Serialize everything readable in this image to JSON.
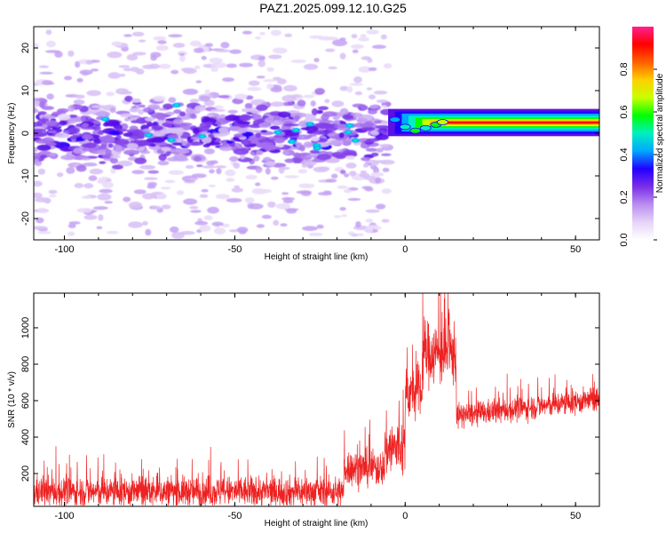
{
  "title": "PAZ1.2025.099.12.10.G25",
  "chart_data": [
    {
      "type": "heatmap",
      "xlabel": "Height of straight line (km)",
      "ylabel": "Frequency (Hz)",
      "xlim": [
        -109,
        57
      ],
      "ylim": [
        -25,
        25
      ],
      "xticks": [
        -100,
        -50,
        0,
        50
      ],
      "yticks": [
        -20,
        -10,
        0,
        10,
        20
      ],
      "colorbar": {
        "label": "Normalized spectral amplitude",
        "range": [
          0,
          1
        ],
        "ticks": [
          "0.0",
          "0.2",
          "0.4",
          "0.6",
          "0.8"
        ],
        "colors": [
          "#ffffff",
          "#e6d4f8",
          "#b98cf0",
          "#7a2ee8",
          "#2200ff",
          "#00a8ff",
          "#00f0c0",
          "#00ff00",
          "#c8ff00",
          "#ffd000",
          "#ff6000",
          "#ff0000",
          "#ff2090"
        ]
      },
      "signal_band": {
        "x_start": -5,
        "x_end": 57,
        "freq_center": 2.5,
        "noise_region_end": -6
      }
    },
    {
      "type": "line",
      "xlabel": "Height of straight line (km)",
      "ylabel": "SNR (10 * v/v)",
      "xlim": [
        -109,
        57
      ],
      "ylim": [
        20,
        1190
      ],
      "xticks": [
        -100,
        -50,
        0,
        50
      ],
      "yticks": [
        200,
        400,
        600,
        800,
        1000
      ],
      "color": "#ee2222",
      "segments": [
        {
          "x_start": -109,
          "x_end": -18,
          "base": 100,
          "noise": 75
        },
        {
          "x_start": -18,
          "x_end": -6,
          "base": 230,
          "noise": 90
        },
        {
          "x_start": -6,
          "x_end": 0,
          "base": 340,
          "noise": 150
        },
        {
          "x_start": 0,
          "x_end": 5,
          "base": 640,
          "noise": 130
        },
        {
          "x_start": 5,
          "x_end": 15,
          "base": 860,
          "noise": 160
        },
        {
          "x_start": 15,
          "x_end": 57,
          "base": 515,
          "noise": 60
        }
      ]
    }
  ]
}
